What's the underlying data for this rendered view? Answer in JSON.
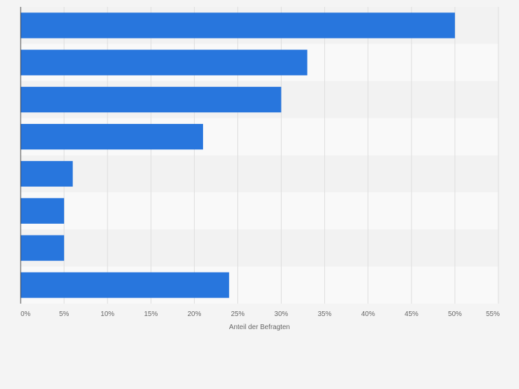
{
  "chart_data": {
    "type": "bar",
    "orientation": "horizontal",
    "categories": [
      "",
      "",
      "",
      "",
      "",
      "",
      "",
      ""
    ],
    "values": [
      50,
      33,
      30,
      21,
      6,
      5,
      5,
      24
    ],
    "xlabel": "Anteil der Befragten",
    "xlim": [
      0,
      55
    ],
    "x_ticks": [
      0,
      5,
      10,
      15,
      20,
      25,
      30,
      35,
      40,
      45,
      50,
      55
    ],
    "x_tick_labels": [
      "0%",
      "5%",
      "10%",
      "15%",
      "20%",
      "25%",
      "30%",
      "35%",
      "40%",
      "45%",
      "50%",
      "55%"
    ],
    "grid": true,
    "legend": "none",
    "colors": {
      "bar": "#2876dd",
      "background": "#f4f4f4",
      "band_light": "#f9f9f9",
      "band_dark": "#f2f2f2",
      "grid": "#dddddd",
      "axis": "#444444",
      "tick_text": "#666666"
    }
  }
}
